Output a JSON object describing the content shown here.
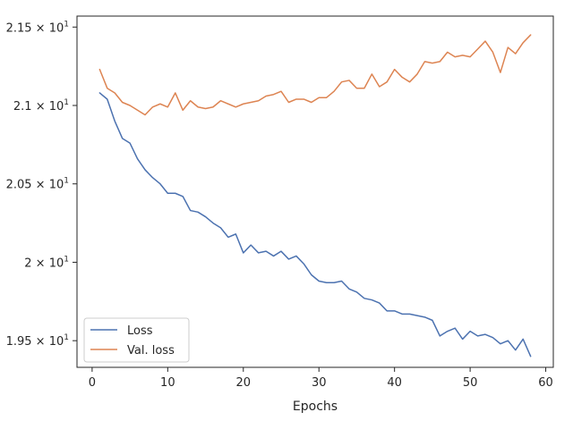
{
  "chart_data": {
    "type": "line",
    "title": "",
    "xlabel": "Epochs",
    "ylabel": "",
    "xlim": [
      -2,
      61
    ],
    "ylim": [
      19.33,
      21.57
    ],
    "grid": false,
    "legend_placement": "lower-left",
    "x_ticks": [
      0,
      10,
      20,
      30,
      40,
      50,
      60
    ],
    "x_tick_labels": [
      "0",
      "10",
      "20",
      "30",
      "40",
      "50",
      "60"
    ],
    "y_ticks": [
      19.5,
      20.0,
      20.5,
      21.0,
      21.5
    ],
    "y_tick_mantissas": [
      "1.95",
      "2",
      "2.05",
      "2.1",
      "2.15"
    ],
    "y_tick_base": "10",
    "y_tick_exponent": "1",
    "y_tick_times": "×",
    "series": [
      {
        "name": "Loss",
        "color": "#4c72b0",
        "x": [
          1,
          2,
          3,
          4,
          5,
          6,
          7,
          8,
          9,
          10,
          11,
          12,
          13,
          14,
          15,
          16,
          17,
          18,
          19,
          20,
          21,
          22,
          23,
          24,
          25,
          26,
          27,
          28,
          29,
          30,
          31,
          32,
          33,
          34,
          35,
          36,
          37,
          38,
          39,
          40,
          41,
          42,
          43,
          44,
          45,
          46,
          47,
          48,
          49,
          50,
          51,
          52,
          53,
          54,
          55,
          56,
          57,
          58
        ],
        "values": [
          21.08,
          21.04,
          20.9,
          20.79,
          20.76,
          20.66,
          20.59,
          20.54,
          20.5,
          20.44,
          20.44,
          20.42,
          20.33,
          20.32,
          20.29,
          20.25,
          20.22,
          20.16,
          20.18,
          20.06,
          20.11,
          20.06,
          20.07,
          20.04,
          20.07,
          20.02,
          20.04,
          19.99,
          19.92,
          19.88,
          19.87,
          19.87,
          19.88,
          19.83,
          19.81,
          19.77,
          19.76,
          19.74,
          19.69,
          19.69,
          19.67,
          19.67,
          19.66,
          19.65,
          19.63,
          19.53,
          19.56,
          19.58,
          19.51,
          19.56,
          19.53,
          19.54,
          19.52,
          19.48,
          19.5,
          19.44,
          19.51,
          19.4
        ]
      },
      {
        "name": "Val. loss",
        "color": "#dd8452",
        "x": [
          1,
          2,
          3,
          4,
          5,
          6,
          7,
          8,
          9,
          10,
          11,
          12,
          13,
          14,
          15,
          16,
          17,
          18,
          19,
          20,
          21,
          22,
          23,
          24,
          25,
          26,
          27,
          28,
          29,
          30,
          31,
          32,
          33,
          34,
          35,
          36,
          37,
          38,
          39,
          40,
          41,
          42,
          43,
          44,
          45,
          46,
          47,
          48,
          49,
          50,
          51,
          52,
          53,
          54,
          55,
          56,
          57,
          58
        ],
        "values": [
          21.23,
          21.11,
          21.08,
          21.02,
          21.0,
          20.97,
          20.94,
          20.99,
          21.01,
          20.99,
          21.08,
          20.97,
          21.03,
          20.99,
          20.98,
          20.99,
          21.03,
          21.01,
          20.99,
          21.01,
          21.02,
          21.03,
          21.06,
          21.07,
          21.09,
          21.02,
          21.04,
          21.04,
          21.02,
          21.05,
          21.05,
          21.09,
          21.15,
          21.16,
          21.11,
          21.11,
          21.2,
          21.12,
          21.15,
          21.23,
          21.18,
          21.15,
          21.2,
          21.28,
          21.27,
          21.28,
          21.34,
          21.31,
          21.32,
          21.31,
          21.36,
          21.41,
          21.34,
          21.21,
          21.37,
          21.33,
          21.4,
          21.45
        ]
      }
    ]
  }
}
